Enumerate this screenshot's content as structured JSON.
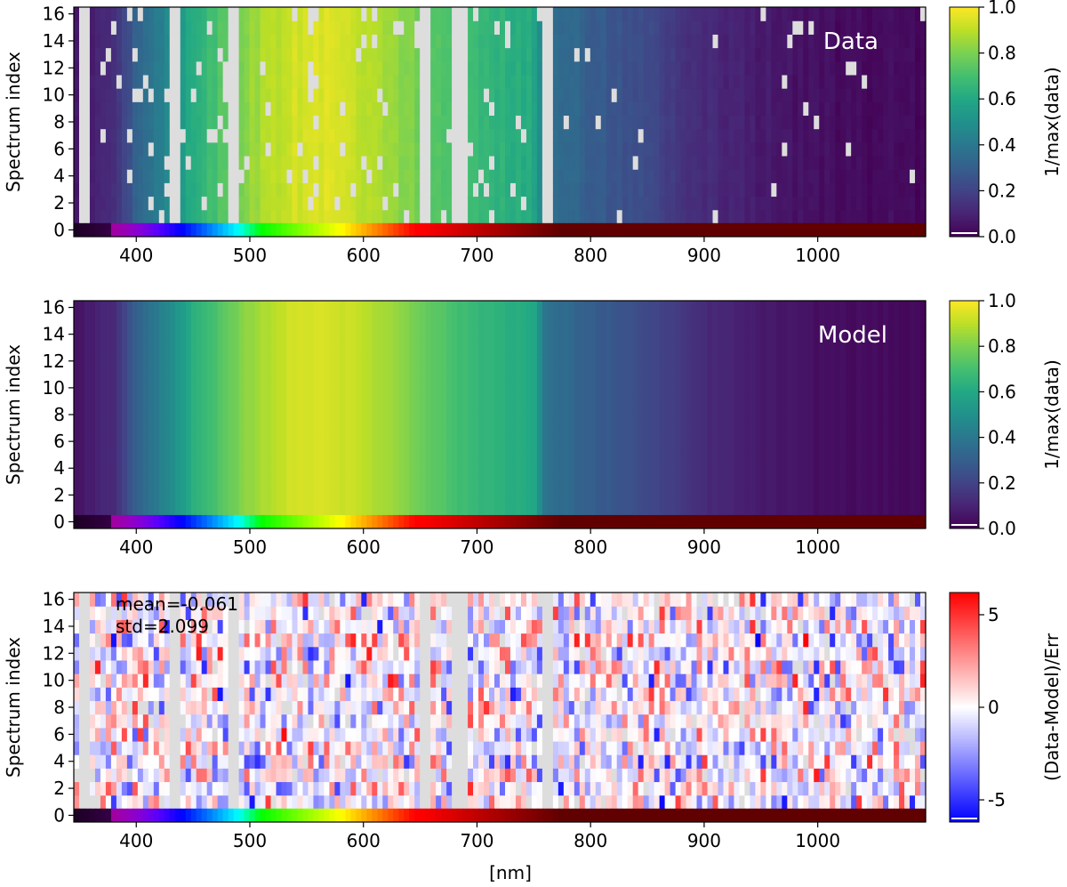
{
  "chart_data": [
    {
      "type": "heatmap",
      "annotation": "Data",
      "ylabel": "Spectrum index",
      "xlabel": "",
      "xlim": [
        345,
        1095
      ],
      "ylim": [
        -0.5,
        16.5
      ],
      "xticks": [
        400,
        500,
        600,
        700,
        800,
        900,
        1000
      ],
      "yticks": [
        0,
        2,
        4,
        6,
        8,
        10,
        12,
        14,
        16
      ],
      "colorbar": {
        "label": "1/max(data)",
        "colormap": "viridis",
        "range": [
          0.0,
          1.0
        ],
        "ticks": [
          "0.0",
          "0.2",
          "0.4",
          "0.6",
          "0.8",
          "1.0"
        ]
      },
      "missing_bands_nm": [
        [
          350,
          360
        ],
        [
          430,
          440
        ],
        [
          480,
          490
        ],
        [
          652,
          660
        ],
        [
          678,
          690
        ],
        [
          756,
          768
        ]
      ],
      "bottom_row": "wavelength color strip"
    },
    {
      "type": "heatmap",
      "annotation": "Model",
      "ylabel": "Spectrum index",
      "xlabel": "",
      "xlim": [
        345,
        1095
      ],
      "ylim": [
        -0.5,
        16.5
      ],
      "xticks": [
        400,
        500,
        600,
        700,
        800,
        900,
        1000
      ],
      "yticks": [
        0,
        2,
        4,
        6,
        8,
        10,
        12,
        14,
        16
      ],
      "colorbar": {
        "label": "1/max(data)",
        "colormap": "viridis",
        "range": [
          0.0,
          1.0
        ],
        "ticks": [
          "0.0",
          "0.2",
          "0.4",
          "0.6",
          "0.8",
          "1.0"
        ]
      },
      "bottom_row": "wavelength color strip"
    },
    {
      "type": "heatmap",
      "annotation_lines": [
        "mean=-0.061",
        "std=2.099"
      ],
      "ylabel": "Spectrum index",
      "xlabel": "[nm]",
      "xlim": [
        345,
        1095
      ],
      "ylim": [
        -0.5,
        16.5
      ],
      "xticks": [
        400,
        500,
        600,
        700,
        800,
        900,
        1000
      ],
      "yticks": [
        0,
        2,
        4,
        6,
        8,
        10,
        12,
        14,
        16
      ],
      "colorbar": {
        "label": "(Data-Model)/Err",
        "colormap": "bwr",
        "range": [
          -6.2,
          6.2
        ],
        "ticks": [
          "-5",
          "0",
          "5"
        ],
        "tick_values": [
          -5,
          0,
          5
        ]
      },
      "mean": -0.061,
      "std": 2.099,
      "bottom_row": "wavelength color strip"
    }
  ],
  "sed_profile": {
    "wavelength_nm": [
      345,
      380,
      400,
      430,
      450,
      480,
      500,
      530,
      560,
      600,
      630,
      650,
      680,
      700,
      720,
      750,
      760,
      780,
      800,
      850,
      900,
      950,
      1000,
      1095
    ],
    "relative_flux": [
      0.05,
      0.12,
      0.3,
      0.48,
      0.62,
      0.75,
      0.84,
      0.92,
      0.95,
      0.9,
      0.84,
      0.78,
      0.7,
      0.66,
      0.64,
      0.6,
      0.38,
      0.34,
      0.3,
      0.22,
      0.12,
      0.07,
      0.04,
      0.02
    ]
  }
}
